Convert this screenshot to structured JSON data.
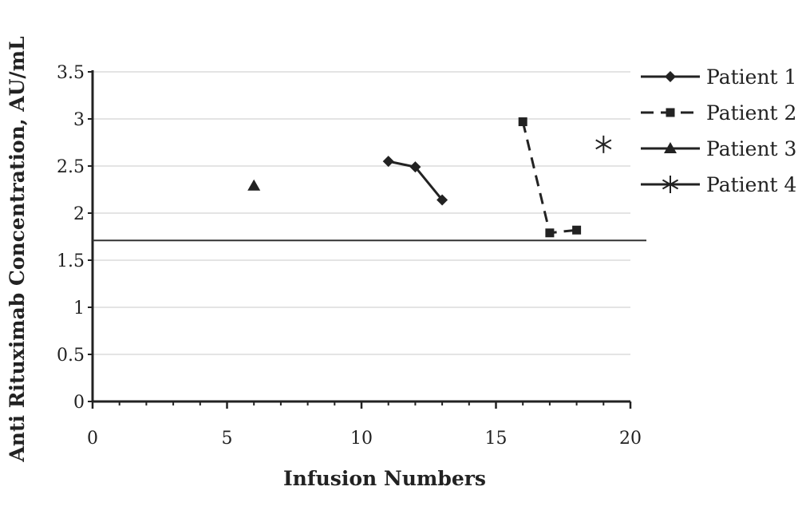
{
  "chart_data": {
    "type": "line",
    "xlabel": "Infusion Numbers",
    "ylabel": "Anti Rituximab Concentration, AU/mL",
    "xlim": [
      0,
      20
    ],
    "ylim": [
      0,
      3.5
    ],
    "x_ticks": [
      "0",
      "5",
      "10",
      "15",
      "20"
    ],
    "y_ticks": [
      "0",
      "0.5",
      "1",
      "1.5",
      "2",
      "2.5",
      "3",
      "3.5"
    ],
    "grid": "horizontal",
    "legend": "right",
    "reference_line": {
      "y": 1.71
    },
    "series": [
      {
        "name": "Patient 1",
        "marker": "diamond",
        "line": "solid",
        "color": "#222222",
        "points": [
          {
            "x": 11,
            "y": 2.55
          },
          {
            "x": 12,
            "y": 2.49
          },
          {
            "x": 13,
            "y": 2.14
          }
        ]
      },
      {
        "name": "Patient 2",
        "marker": "square",
        "line": "dashed",
        "color": "#222222",
        "points": [
          {
            "x": 16,
            "y": 2.97
          },
          {
            "x": 17,
            "y": 1.79
          },
          {
            "x": 18,
            "y": 1.82
          }
        ]
      },
      {
        "name": "Patient 3",
        "marker": "triangle",
        "line": "solid",
        "color": "#222222",
        "points": [
          {
            "x": 6,
            "y": 2.29
          }
        ]
      },
      {
        "name": "Patient 4",
        "marker": "asterisk",
        "line": "solid",
        "color": "#222222",
        "points": [
          {
            "x": 19,
            "y": 2.73
          }
        ]
      }
    ]
  }
}
